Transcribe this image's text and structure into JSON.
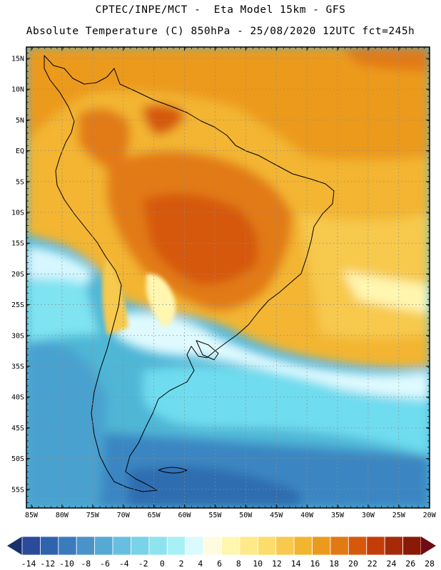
{
  "header": {
    "line1": "CPTEC/INPE/MCT -  Eta Model 15km - GFS",
    "line2": "Absolute Temperature (C) 850hPa - 25/08/2020 12UTC fct=245h"
  },
  "axes": {
    "lat_labels": [
      "15N",
      "10N",
      "5N",
      "EQ",
      "5S",
      "10S",
      "15S",
      "20S",
      "25S",
      "30S",
      "35S",
      "40S",
      "45S",
      "50S",
      "55S"
    ],
    "lon_labels": [
      "85W",
      "80W",
      "75W",
      "70W",
      "65W",
      "60W",
      "55W",
      "50W",
      "45W",
      "40W",
      "35W",
      "30W",
      "25W",
      "20W"
    ]
  },
  "colorbar": {
    "labels": [
      "-14",
      "-12",
      "-10",
      "-8",
      "-6",
      "-4",
      "-2",
      "0",
      "2",
      "4",
      "6",
      "8",
      "10",
      "12",
      "14",
      "16",
      "18",
      "20",
      "22",
      "24",
      "26",
      "28"
    ],
    "colors": [
      "#2a4a9a",
      "#2f64ad",
      "#3a7bbd",
      "#4a93c9",
      "#56a9d4",
      "#66bfe0",
      "#78d2e8",
      "#8fe3ef",
      "#a7f0f6",
      "#d9fbff",
      "#fffbe0",
      "#fff6b0",
      "#ffe98a",
      "#fcdd6c",
      "#f7c94d",
      "#f3b530",
      "#ec9a1e",
      "#e27a14",
      "#d6580d",
      "#c33d0a",
      "#a62a08",
      "#8a1a08"
    ],
    "low_arrow_color": "#17306b",
    "high_arrow_color": "#6e0b14"
  },
  "colors": {
    "frame": "#000000",
    "grid": "#8c8c8c"
  }
}
